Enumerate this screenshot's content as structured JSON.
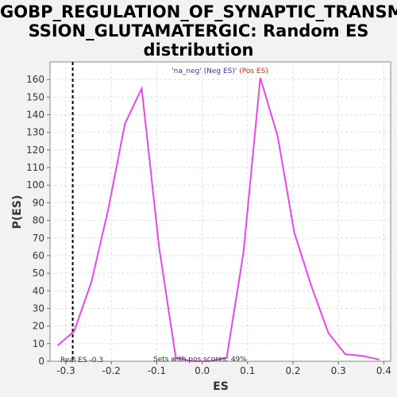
{
  "title_lines": [
    "GOBP_REGULATION_OF_SYNAPTIC_TRANSMI",
    "SSION_GLUTAMATERGIC: Random ES",
    "distribution"
  ],
  "legend": {
    "neg_text": "'na_neg' (Neg ES)'",
    "pos_text": " (Pos ES)",
    "neg_color": "#3333cc",
    "pos_color": "#dd2222"
  },
  "annotations": {
    "real_es": "Real ES -0.3",
    "sets_pos": "Sets with pos scores: 49%"
  },
  "colors": {
    "line": "#ee44ee",
    "real_es_line": "#000000",
    "grid": "#dddddd"
  },
  "chart_data": {
    "type": "line",
    "title": "GOBP_REGULATION_OF_SYNAPTIC_TRANSMISSION_GLUTAMATERGIC: Random ES distribution",
    "xlabel": "ES",
    "ylabel": "P(ES)",
    "xlim": [
      -0.335,
      0.415
    ],
    "ylim": [
      0,
      170
    ],
    "x_ticks": [
      -0.3,
      -0.2,
      -0.1,
      0.0,
      0.1,
      0.2,
      0.3,
      0.4
    ],
    "x_tick_labels": [
      "-0.3",
      "-0.2",
      "-0.1",
      "0.0",
      "0.1",
      "0.2",
      "0.3",
      "0.4"
    ],
    "y_ticks": [
      0,
      10,
      20,
      30,
      40,
      50,
      60,
      70,
      80,
      90,
      100,
      110,
      120,
      130,
      140,
      150,
      160
    ],
    "y_tick_labels": [
      "0",
      "10",
      "20",
      "30",
      "40",
      "50",
      "60",
      "70",
      "80",
      "90",
      "100",
      "110",
      "120",
      "130",
      "140",
      "150",
      "160"
    ],
    "grid": true,
    "real_es": -0.285,
    "series": [
      {
        "x": [
          -0.318,
          -0.282,
          -0.244,
          -0.207,
          -0.17,
          -0.133,
          -0.095,
          -0.058,
          -0.021,
          0.016,
          0.054,
          0.091,
          0.128,
          0.166,
          0.203,
          0.24,
          0.278,
          0.315,
          0.353,
          0.39
        ],
        "y": [
          9,
          17,
          45,
          86,
          135,
          155,
          65,
          2,
          0,
          0,
          2,
          62,
          161,
          128,
          73,
          43,
          16,
          4,
          3,
          1
        ]
      }
    ]
  }
}
